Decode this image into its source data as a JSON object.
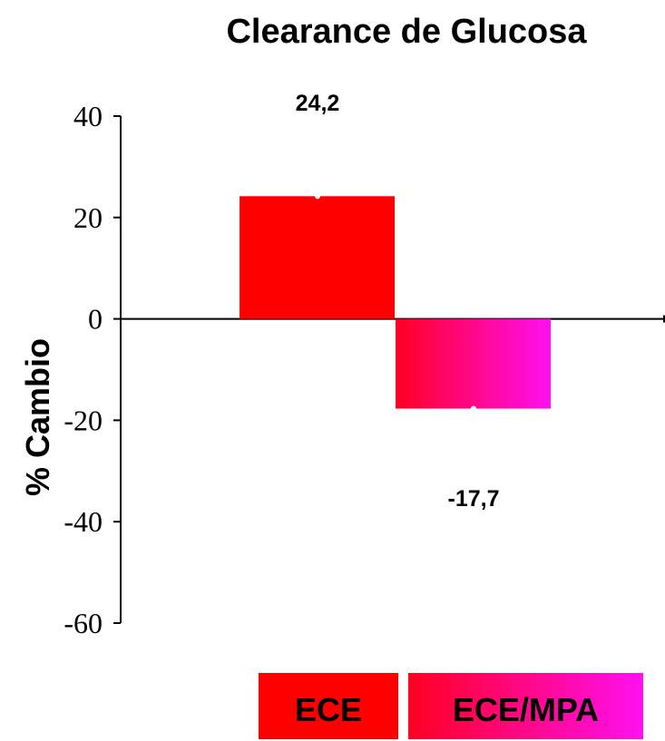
{
  "chart_data": {
    "type": "bar",
    "title": "Clearance de Glucosa",
    "ylabel": "% Cambio",
    "xlabel": "",
    "ylim": [
      -60,
      40
    ],
    "yticks": [
      40,
      20,
      0,
      -20,
      -40,
      -60
    ],
    "ytick_labels": [
      "40",
      "20",
      "0",
      "-20",
      "-40",
      "-60"
    ],
    "categories": [
      "ECE",
      "ECE/MPA"
    ],
    "values": [
      24.2,
      -17.7
    ],
    "value_labels": [
      "24,2",
      "-17,7"
    ],
    "grid": false,
    "colors": {
      "ECE": "#ff0000",
      "ECE/MPA_start": "#ff0022",
      "ECE/MPA_end": "#ff10f0"
    }
  }
}
